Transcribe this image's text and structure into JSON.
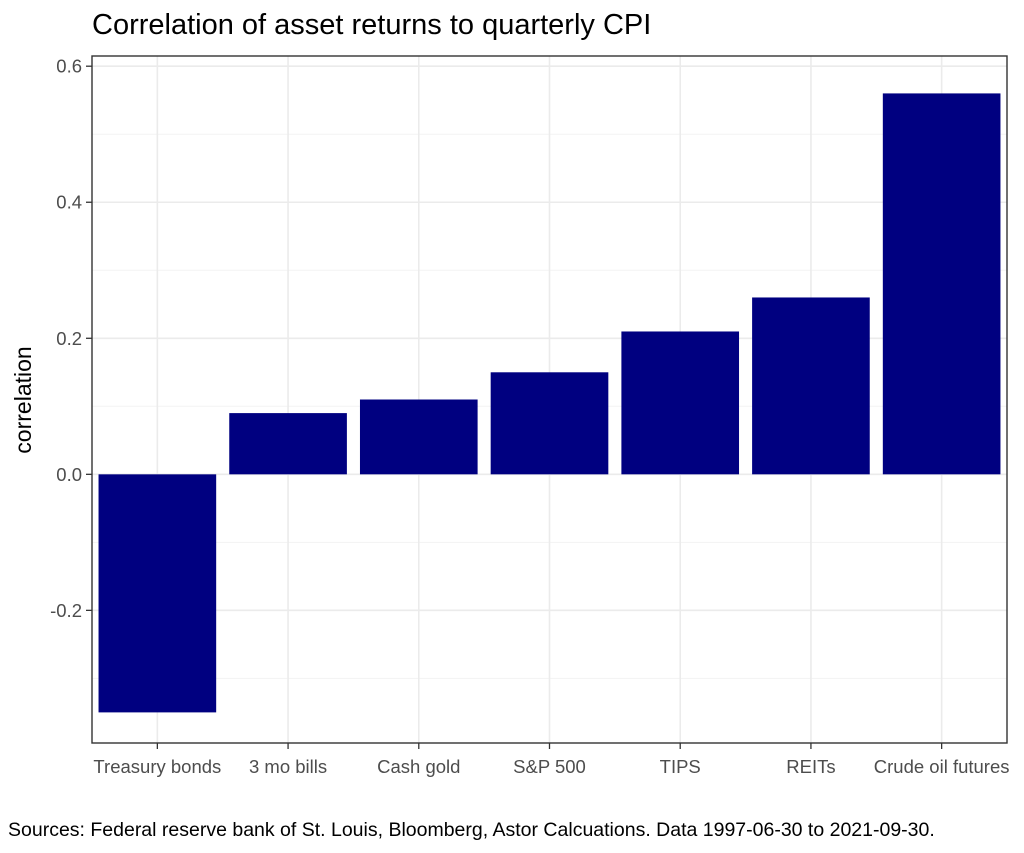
{
  "chart_data": {
    "type": "bar",
    "title": "Correlation of asset returns to quarterly CPI",
    "xlabel": "",
    "ylabel": "correlation",
    "caption": "Sources: Federal reserve bank of St. Louis, Bloomberg, Astor Calcuations. Data 1997-06-30 to 2021-09-30.",
    "categories": [
      "Treasury bonds",
      "3 mo bills",
      "Cash gold",
      "S&P 500",
      "TIPS",
      "REITs",
      "Crude oil futures"
    ],
    "values": [
      -0.35,
      0.09,
      0.11,
      0.15,
      0.21,
      0.26,
      0.56
    ],
    "y_ticks": [
      0.6,
      0.4,
      0.2,
      0.0,
      -0.2
    ],
    "y_tick_labels": [
      "0.6",
      "0.4",
      "0.2",
      "0.0",
      "-0.2"
    ],
    "ylim": [
      -0.395,
      0.615
    ],
    "bar_color": "#000080",
    "grid": true,
    "legend": "none",
    "theme": "bw"
  }
}
